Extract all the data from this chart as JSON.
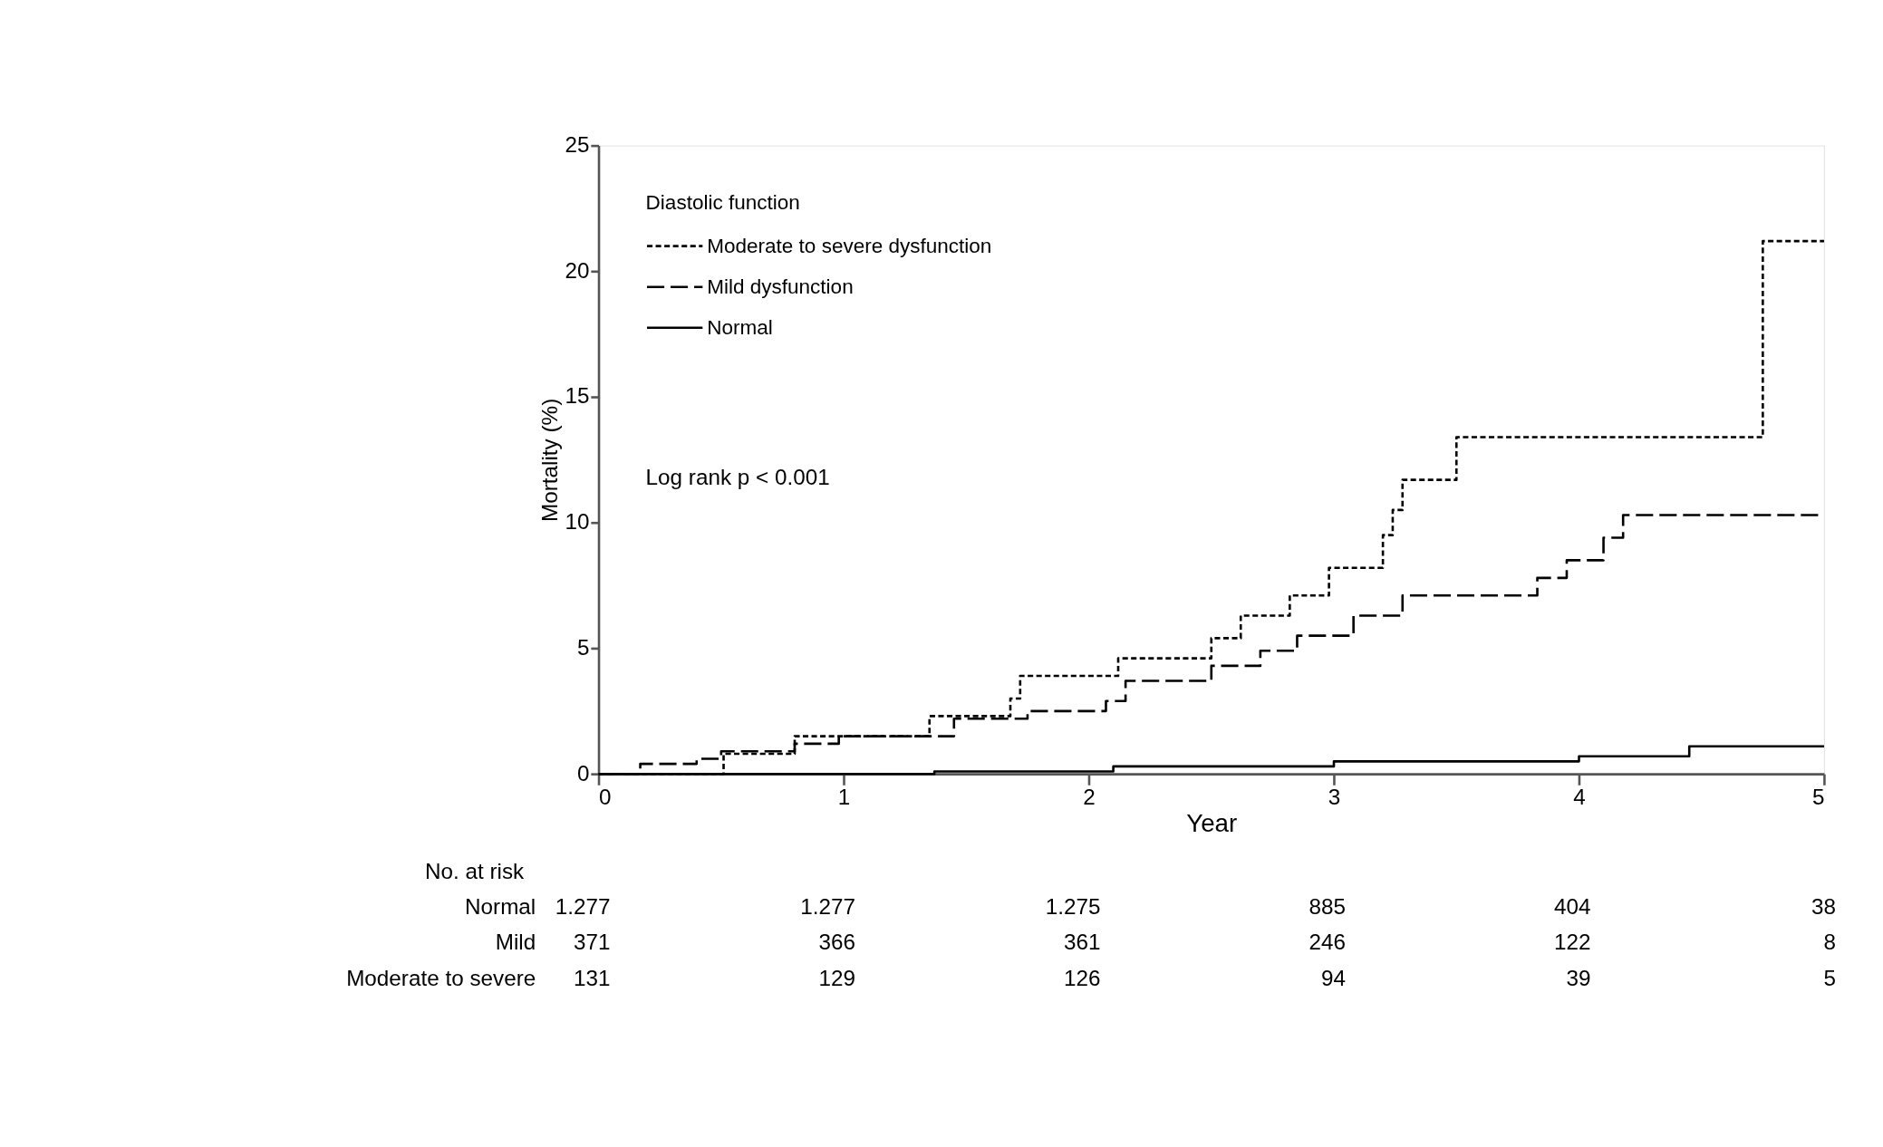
{
  "chart_data": {
    "type": "step",
    "xlabel": "Year",
    "ylabel": "Mortality (%)",
    "legend_title": "Diastolic function",
    "legend": "top left",
    "grid": false,
    "xlim": [
      0,
      5
    ],
    "ylim": [
      0,
      25
    ],
    "xticks": [
      0,
      1,
      2,
      3,
      4,
      5
    ],
    "yticks": [
      0,
      5,
      10,
      15,
      20,
      25
    ],
    "series": [
      {
        "name": "Moderate to severe dysfunction",
        "color": "#000000",
        "line_style": "dotted",
        "x": [
          0,
          0.51,
          0.8,
          1.35,
          1.68,
          1.72,
          2.12,
          2.5,
          2.62,
          2.82,
          2.98,
          3.2,
          3.24,
          3.28,
          3.5,
          4.75,
          5
        ],
        "values": [
          0,
          0.8,
          1.5,
          2.3,
          3.0,
          3.9,
          4.6,
          5.4,
          6.3,
          7.1,
          8.2,
          9.5,
          10.5,
          11.7,
          13.4,
          21.2,
          21.2
        ]
      },
      {
        "name": "Mild dysfunction",
        "color": "#000000",
        "line_style": "dashed",
        "x": [
          0,
          0.17,
          0.4,
          0.5,
          0.8,
          0.98,
          1.45,
          1.75,
          2.07,
          2.15,
          2.5,
          2.7,
          2.85,
          3.08,
          3.28,
          3.83,
          3.95,
          4.1,
          4.18,
          5
        ],
        "values": [
          0,
          0.4,
          0.6,
          0.9,
          1.2,
          1.5,
          2.2,
          2.5,
          2.9,
          3.7,
          4.3,
          4.9,
          5.5,
          6.3,
          7.1,
          7.8,
          8.5,
          9.4,
          10.3,
          10.3
        ]
      },
      {
        "name": "Normal",
        "color": "#000000",
        "line_style": "solid",
        "x": [
          0,
          1.37,
          2.1,
          3.0,
          4.0,
          4.45,
          5
        ],
        "values": [
          0,
          0.1,
          0.3,
          0.5,
          0.7,
          1.1,
          1.1
        ]
      }
    ],
    "annotations": [
      "Log rank p < 0.001",
      "No. at risk",
      "Normal",
      "1.277",
      "1.277",
      "1.275",
      "885",
      "404",
      "38",
      "Mild",
      "371",
      "366",
      "361",
      "246",
      "122",
      "8",
      "Moderate to severe",
      "131",
      "129",
      "126",
      "94",
      "39",
      "5"
    ]
  }
}
